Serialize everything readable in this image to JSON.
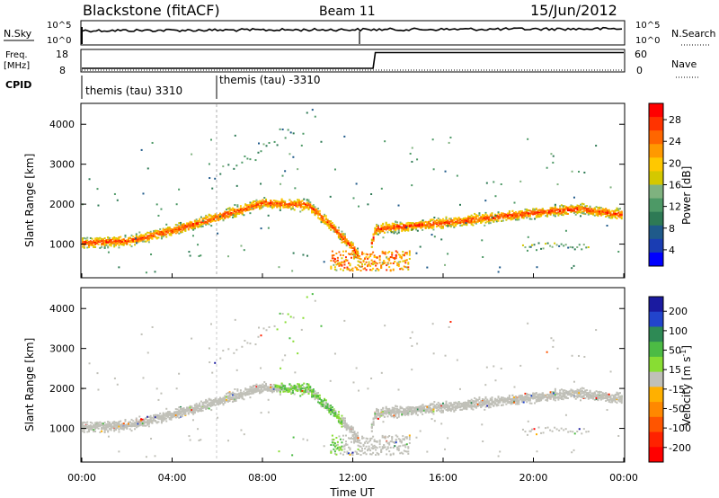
{
  "header": {
    "station": "Blackstone (fitACF)",
    "beam": "Beam 11",
    "date": "15/Jun/2012"
  },
  "params": {
    "nsky_label": "N.Sky",
    "nsky_ticks": [
      "10^5",
      "10^0"
    ],
    "nsearch_label": "N.Search",
    "nsearch_ticks": [
      "10^5",
      "10^0"
    ],
    "freq_label": "Freq.",
    "freq_unit": "[MHz]",
    "freq_ticks": [
      "18",
      "8"
    ],
    "nave_label": "Nave",
    "nave_ticks": [
      "60",
      "0"
    ],
    "cpid_label": "CPID",
    "cpid_segments": [
      "themis (tau) 3310",
      "themis (tau) -3310"
    ]
  },
  "colorbars": {
    "power": {
      "title": "Power [dB]",
      "ticks": [
        "28",
        "24",
        "20",
        "16",
        "12",
        "8",
        "4"
      ],
      "colors": [
        "#ff0000",
        "#ff3300",
        "#ff6600",
        "#ff9900",
        "#ffc800",
        "#d4c800",
        "#7fb27f",
        "#4d9966",
        "#2e7a55",
        "#1f5a8a",
        "#1a3db3",
        "#0000ff"
      ]
    },
    "velocity": {
      "title": "Velocity [m s",
      "title_sup": "-1",
      "title_end": "]",
      "ticks": [
        "200",
        "100",
        "50",
        "15",
        "-15",
        "-50",
        "-100",
        "-200"
      ],
      "colors": [
        "#1a1aa0",
        "#2244cc",
        "#2e8a55",
        "#4cbb44",
        "#88dd33",
        "#c0c0b8",
        "#ffb000",
        "#ff8800",
        "#ff5500",
        "#ff2200",
        "#ff0000"
      ]
    }
  },
  "axes": {
    "ylabel": "Slant Range [km]",
    "yticks": [
      "4000",
      "3000",
      "2000",
      "1000"
    ],
    "xticks": [
      "00:00",
      "04:00",
      "08:00",
      "12:00",
      "16:00",
      "20:00",
      "00:00"
    ],
    "xlabel": "Time UT"
  },
  "chart_data": {
    "type": "heatmap",
    "title": "Blackstone (fitACF)",
    "xlabel": "Time UT",
    "ylabel": "Slant Range [km]",
    "x_unit": "hours UT",
    "xlim": [
      0,
      24
    ],
    "ylim": [
      180,
      4500
    ],
    "echo_band_center_km": {
      "time_h": [
        0,
        2,
        4,
        6,
        8,
        10,
        11,
        12,
        12.5,
        13,
        16,
        20,
        22,
        24
      ],
      "range_km": [
        1050,
        1100,
        1350,
        1700,
        2050,
        2000,
        1500,
        900,
        500,
        1400,
        1550,
        1800,
        1900,
        1750
      ]
    },
    "freq_mhz": [
      {
        "t": 0,
        "v": 10
      },
      {
        "t": 12.9,
        "v": 10
      },
      {
        "t": 13,
        "v": 17
      },
      {
        "t": 24,
        "v": 17
      }
    ],
    "cpid_change_h": 6
  }
}
